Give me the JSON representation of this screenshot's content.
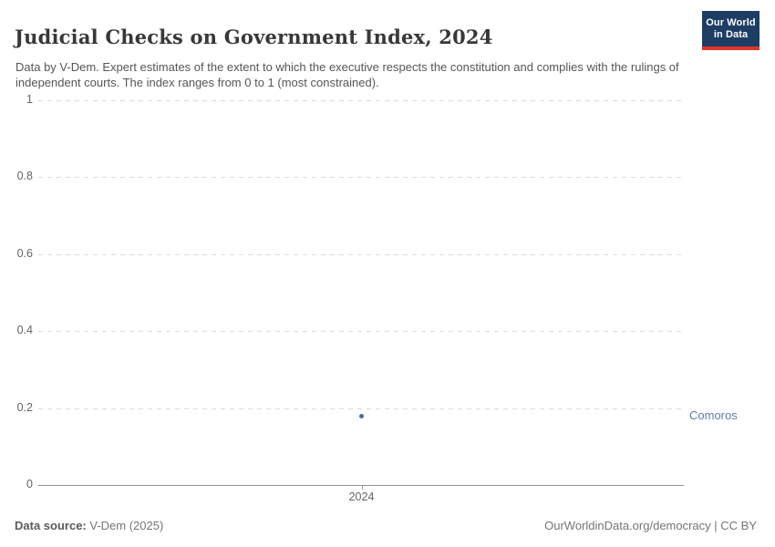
{
  "header": {
    "title": "Judicial Checks on Government Index, 2024",
    "subtitle": "Data by V-Dem. Expert estimates of the extent to which the executive respects the constitution and complies with the rulings of independent courts. The index ranges from 0 to 1 (most constrained).",
    "logo": {
      "line1": "Our World",
      "line2": "in Data"
    }
  },
  "chart_data": {
    "type": "scatter",
    "title": "Judicial Checks on Government Index, 2024",
    "series": [
      {
        "name": "Comoros",
        "x": [
          2024
        ],
        "y": [
          0.18
        ]
      }
    ],
    "xticks": [
      "2024"
    ],
    "yticks": [
      0,
      0.2,
      0.4,
      0.6,
      0.8,
      1
    ],
    "ylim": [
      0,
      1
    ],
    "grid": true,
    "colors": {
      "point": "#4c6a9c",
      "entity_label": "#5b7bb0",
      "gridline": "#dcdcdc",
      "axis": "#8f8f8f"
    }
  },
  "footer": {
    "source_label": "Data source:",
    "source_value": "V-Dem (2025)",
    "license": "OurWorldinData.org/democracy | CC BY"
  }
}
